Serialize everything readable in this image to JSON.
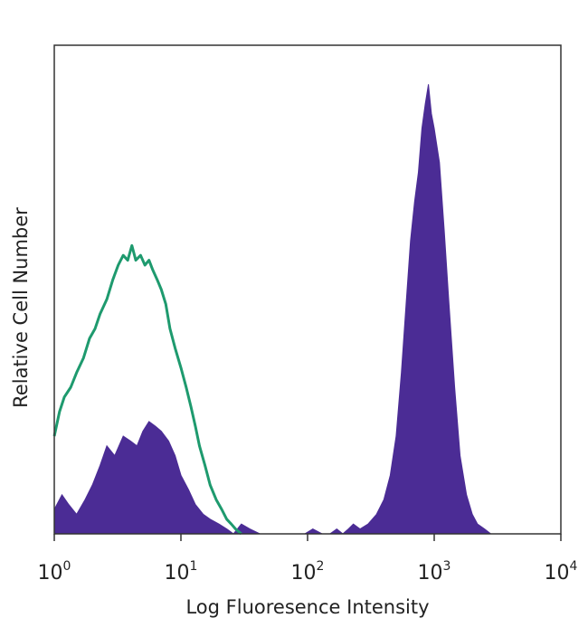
{
  "chart_data": {
    "type": "area",
    "xlabel": "Log Fluoresence Intensity",
    "ylabel": "Relative Cell Number",
    "x_scale": "log",
    "xlim": [
      1,
      10000
    ],
    "ylim": [
      0,
      100
    ],
    "grid": false,
    "legend": "none",
    "x_ticks": [
      {
        "value": 1,
        "base": "10",
        "exp": "0"
      },
      {
        "value": 10,
        "base": "10",
        "exp": "1"
      },
      {
        "value": 100,
        "base": "10",
        "exp": "2"
      },
      {
        "value": 1000,
        "base": "10",
        "exp": "3"
      },
      {
        "value": 10000,
        "base": "10",
        "exp": "4"
      }
    ],
    "series": [
      {
        "style": "filled",
        "color": "#4b2c95",
        "x": [
          1.0,
          1.15,
          1.3,
          1.5,
          1.75,
          2.0,
          2.3,
          2.6,
          3.0,
          3.5,
          4.0,
          4.5,
          5.0,
          5.6,
          6.3,
          7.0,
          8.0,
          9.0,
          10.0,
          11.5,
          13.0,
          15.0,
          17.0,
          20.0,
          23.0,
          26.0,
          30.0,
          35.0,
          42.0,
          50.0,
          60.0,
          70.0,
          80.0,
          95.0,
          110.0,
          130.0,
          150.0,
          170.0,
          190.0,
          210.0,
          230.0,
          260.0,
          300.0,
          350.0,
          400.0,
          450.0,
          500.0,
          550.0,
          600.0,
          650.0,
          700.0,
          750.0,
          800.0,
          850.0,
          900.0,
          950.0,
          1000.0,
          1100.0,
          1200.0,
          1300.0,
          1450.0,
          1600.0,
          1800.0,
          2000.0,
          2200.0,
          2500.0,
          2800.0
        ],
        "y": [
          5,
          8,
          6,
          4,
          7,
          10,
          14,
          18,
          16,
          20,
          19,
          18,
          21,
          23,
          22,
          21,
          19,
          16,
          12,
          9,
          6,
          4,
          3,
          2,
          1,
          0,
          2,
          1,
          0,
          0,
          0,
          0,
          0,
          0,
          1,
          0,
          0,
          1,
          0,
          1,
          2,
          1,
          2,
          4,
          7,
          12,
          20,
          33,
          47,
          60,
          68,
          74,
          83,
          88,
          92,
          86,
          83,
          76,
          62,
          48,
          30,
          16,
          8,
          4,
          2,
          1,
          0
        ]
      },
      {
        "style": "line",
        "color": "#1e9a6e",
        "x": [
          1.0,
          1.1,
          1.2,
          1.35,
          1.5,
          1.7,
          1.9,
          2.1,
          2.3,
          2.6,
          2.9,
          3.2,
          3.5,
          3.8,
          4.1,
          4.4,
          4.8,
          5.2,
          5.6,
          6.0,
          6.5,
          7.0,
          7.6,
          8.2,
          9.0,
          10.0,
          11.0,
          12.0,
          13.0,
          14.0,
          15.5,
          17.0,
          19.0,
          21.0,
          23.0,
          25.0,
          27.0,
          30.0
        ],
        "y": [
          20,
          25,
          28,
          30,
          33,
          36,
          40,
          42,
          45,
          48,
          52,
          55,
          57,
          56,
          59,
          56,
          57,
          55,
          56,
          54,
          52,
          50,
          47,
          42,
          38,
          34,
          30,
          26,
          22,
          18,
          14,
          10,
          7,
          5,
          3,
          2,
          1,
          0
        ]
      }
    ]
  }
}
